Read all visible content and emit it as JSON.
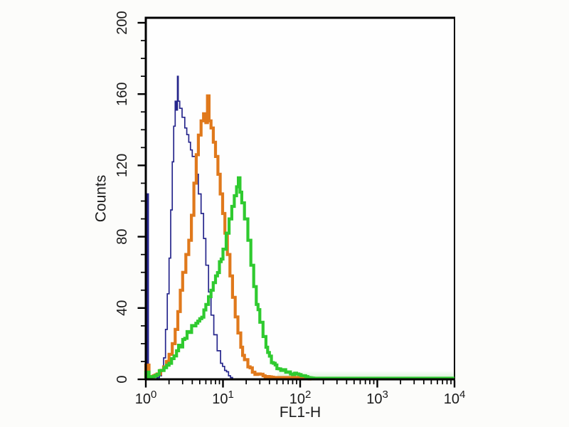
{
  "figure": {
    "background": "#fcfcfa",
    "plot_background": "#fefefe",
    "axis_color": "#000000",
    "tick_label_color": "#1a1a1a",
    "haze_color": "#78d278"
  },
  "chart_data": {
    "type": "line",
    "subtype": "flow-cytometry-histogram-overlay",
    "title": "",
    "xlabel": "FL1-H",
    "ylabel": "Counts",
    "x_scale": "log10",
    "xlim": [
      1,
      10000
    ],
    "ylim": [
      0,
      200
    ],
    "grid": false,
    "legend": null,
    "x_tick_base": "10",
    "x_tick_exponents": [
      "0",
      "1",
      "2",
      "3",
      "4"
    ],
    "y_tick_values": [
      0,
      40,
      80,
      120,
      160,
      200
    ],
    "y_tick_labels": [
      "0",
      "40",
      "80",
      "120",
      "160",
      "200"
    ],
    "y_minor_step": 10,
    "series": [
      {
        "name": "blue-control",
        "color": "#26268c",
        "line_width": 1.7,
        "first_channel_spike": 104,
        "peak_x": 2.6,
        "peak_counts": 170,
        "points": [
          [
            1,
            104
          ],
          [
            1.08,
            1
          ],
          [
            1.3,
            0
          ],
          [
            1.5,
            2
          ],
          [
            1.6,
            5
          ],
          [
            1.7,
            12
          ],
          [
            1.8,
            28
          ],
          [
            1.9,
            48
          ],
          [
            2.0,
            68
          ],
          [
            2.1,
            95
          ],
          [
            2.2,
            122
          ],
          [
            2.3,
            142
          ],
          [
            2.4,
            156
          ],
          [
            2.48,
            151
          ],
          [
            2.57,
            170
          ],
          [
            2.63,
            156
          ],
          [
            2.75,
            152
          ],
          [
            2.95,
            147
          ],
          [
            3.2,
            141
          ],
          [
            3.6,
            133
          ],
          [
            4.0,
            125
          ],
          [
            4.4,
            115
          ],
          [
            4.8,
            104
          ],
          [
            5.2,
            93
          ],
          [
            5.6,
            79
          ],
          [
            6.0,
            64
          ],
          [
            6.5,
            49
          ],
          [
            7.0,
            36
          ],
          [
            7.6,
            25
          ],
          [
            8.4,
            16
          ],
          [
            9.3,
            9
          ],
          [
            10.5,
            5
          ],
          [
            11.8,
            2
          ],
          [
            13.3,
            0
          ]
        ]
      },
      {
        "name": "orange-sample",
        "color": "#e0791c",
        "line_width": 4.2,
        "first_channel_spike": 8,
        "peak_x": 6.3,
        "peak_counts": 159,
        "points": [
          [
            1,
            8
          ],
          [
            1.1,
            1
          ],
          [
            1.25,
            2
          ],
          [
            1.4,
            3
          ],
          [
            1.55,
            5
          ],
          [
            1.7,
            7
          ],
          [
            1.85,
            10
          ],
          [
            2.0,
            14
          ],
          [
            2.2,
            20
          ],
          [
            2.4,
            28
          ],
          [
            2.6,
            38
          ],
          [
            2.8,
            50
          ],
          [
            3.0,
            60
          ],
          [
            3.3,
            70
          ],
          [
            3.6,
            78
          ],
          [
            3.9,
            92
          ],
          [
            4.2,
            110
          ],
          [
            4.5,
            126
          ],
          [
            4.8,
            137
          ],
          [
            5.2,
            145
          ],
          [
            5.6,
            149
          ],
          [
            6.0,
            144
          ],
          [
            6.3,
            159
          ],
          [
            6.6,
            145
          ],
          [
            7.0,
            141
          ],
          [
            7.5,
            133
          ],
          [
            8.0,
            125
          ],
          [
            8.6,
            115
          ],
          [
            9.2,
            104
          ],
          [
            9.9,
            93
          ],
          [
            10.6,
            82
          ],
          [
            11.4,
            70
          ],
          [
            12.3,
            58
          ],
          [
            13.3,
            46
          ],
          [
            14.4,
            35
          ],
          [
            15.6,
            26
          ],
          [
            17,
            18
          ],
          [
            19,
            11
          ],
          [
            21,
            7
          ],
          [
            24,
            4
          ],
          [
            28,
            3
          ],
          [
            33,
            2
          ],
          [
            45,
            1
          ],
          [
            70,
            1
          ],
          [
            100,
            1
          ],
          [
            140,
            0
          ]
        ]
      },
      {
        "name": "green-sample",
        "color": "#2fca2f",
        "line_width": 4.2,
        "first_channel_spike": 4,
        "peak_x": 15.8,
        "peak_counts": 113,
        "points": [
          [
            1,
            4
          ],
          [
            1.1,
            1
          ],
          [
            1.3,
            2
          ],
          [
            1.6,
            5
          ],
          [
            2.0,
            9
          ],
          [
            2.5,
            16
          ],
          [
            3.2,
            23
          ],
          [
            4.2,
            30
          ],
          [
            5.0,
            34
          ],
          [
            6.0,
            42
          ],
          [
            7.0,
            50
          ],
          [
            8.0,
            58
          ],
          [
            9.0,
            66
          ],
          [
            10,
            73
          ],
          [
            11,
            82
          ],
          [
            12,
            90
          ],
          [
            13,
            97
          ],
          [
            14,
            103
          ],
          [
            15,
            108
          ],
          [
            15.8,
            113
          ],
          [
            16.6,
            105
          ],
          [
            17.5,
            99
          ],
          [
            19,
            90
          ],
          [
            21,
            78
          ],
          [
            23,
            64
          ],
          [
            25,
            52
          ],
          [
            27,
            42
          ],
          [
            30,
            32
          ],
          [
            33,
            24
          ],
          [
            36,
            18
          ],
          [
            40,
            13
          ],
          [
            45,
            9
          ],
          [
            50,
            6
          ],
          [
            56,
            5
          ],
          [
            65,
            4
          ],
          [
            75,
            3
          ],
          [
            90,
            3
          ],
          [
            110,
            2
          ],
          [
            126,
            1
          ],
          [
            150,
            0.6
          ],
          [
            10000,
            0.6
          ]
        ]
      }
    ]
  }
}
